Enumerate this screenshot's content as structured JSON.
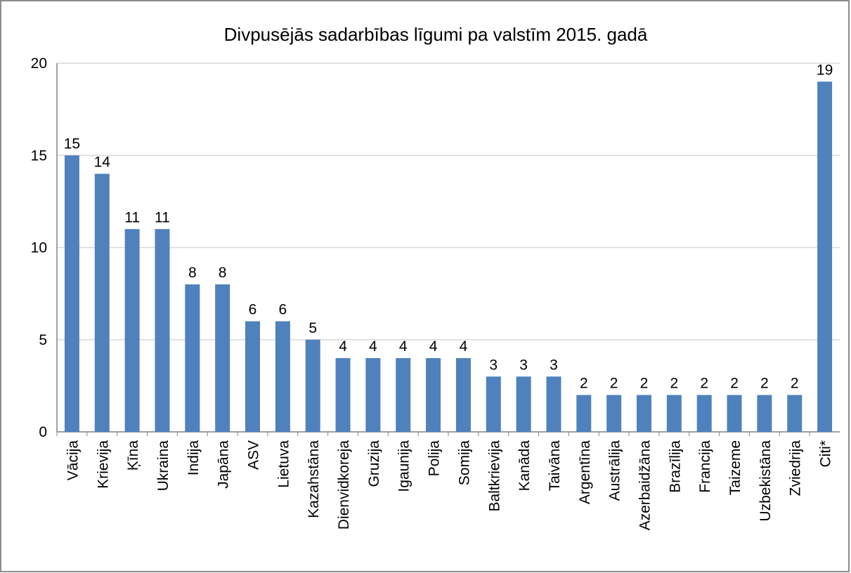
{
  "chart_data": {
    "type": "bar",
    "title": "Divpusējās sadarbības līgumi pa valstīm 2015. gadā",
    "categories": [
      "Vācija",
      "Krievija",
      "Ķīna",
      "Ukraina",
      "Indija",
      "Japāna",
      "ASV",
      "Lietuva",
      "Kazahstāna",
      "Dienvidkoreja",
      "Gruzija",
      "Igaunija",
      "Polija",
      "Somija",
      "Baltkrievija",
      "Kanāda",
      "Taivāna",
      "Argentīna",
      "Austrālija",
      "Azerbaidžāna",
      "Brazīlija",
      "Francija",
      "Taizeme",
      "Uzbekistāna",
      "Zviedrija",
      "Citi*"
    ],
    "values": [
      15,
      14,
      11,
      11,
      8,
      8,
      6,
      6,
      5,
      4,
      4,
      4,
      4,
      4,
      3,
      3,
      3,
      2,
      2,
      2,
      2,
      2,
      2,
      2,
      2,
      19
    ],
    "color": "#4f81bd",
    "ylim": [
      0,
      20
    ],
    "yticks": [
      0,
      5,
      10,
      15,
      20
    ],
    "grid": true
  }
}
